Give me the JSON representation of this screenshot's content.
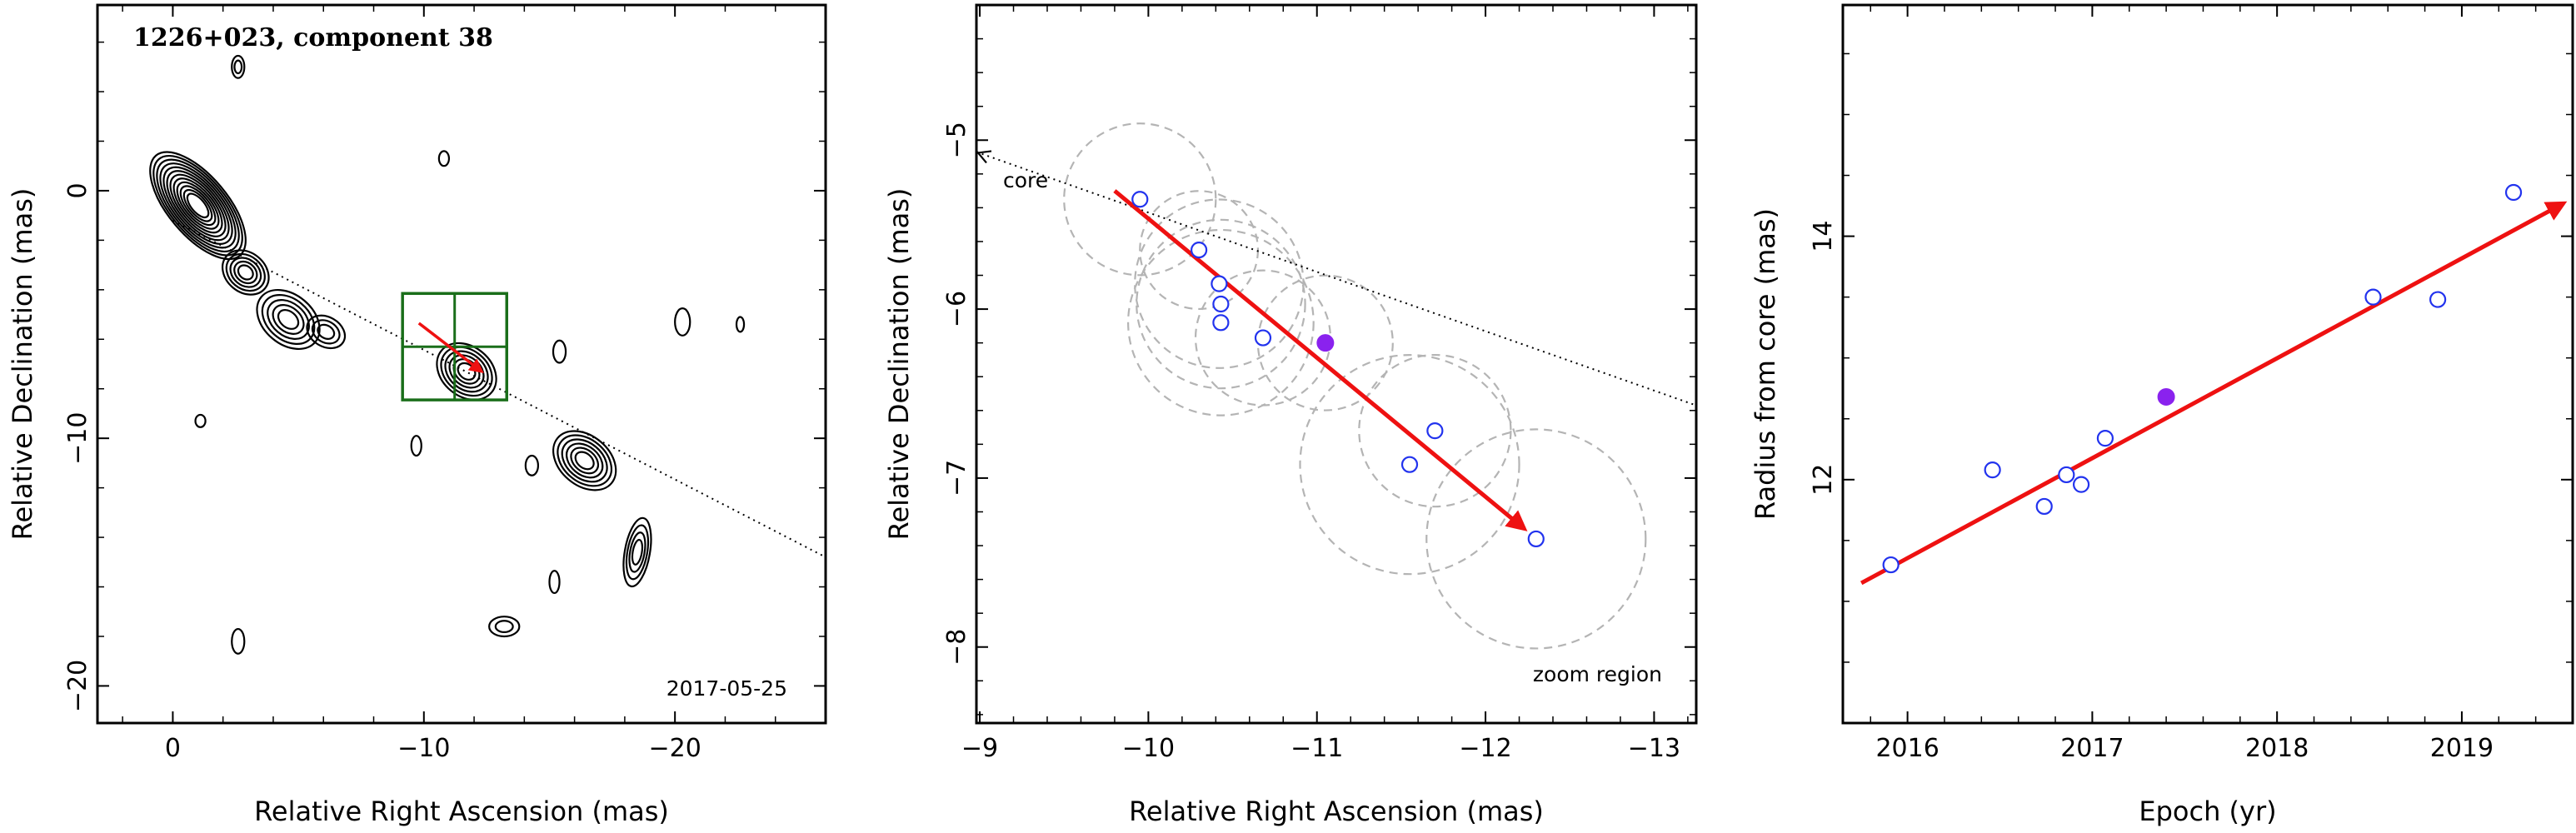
{
  "chart_data": [
    {
      "type": "contour",
      "title": "1226+023, component 38",
      "xlabel": "Relative Right Ascension (mas)",
      "ylabel": "Relative Declination (mas)",
      "xlim": [
        3,
        -26
      ],
      "ylim": [
        -21.5,
        7.5
      ],
      "xticks": [
        0,
        -10,
        -20
      ],
      "xtick_labels": [
        "0",
        "−10",
        "−20"
      ],
      "yticks": [
        0,
        -10,
        -20
      ],
      "ytick_labels": [
        "0",
        "−10",
        "−20"
      ],
      "date_label": "2017-05-25",
      "jet_axis_line": [
        [
          0,
          -1.2
        ],
        [
          -26,
          -14.8
        ]
      ],
      "zoom_box": {
        "x": [
          -9.15,
          -13.3
        ],
        "y": [
          -4.15,
          -8.45
        ]
      },
      "motion_arrow": {
        "from": [
          -9.8,
          -5.35
        ],
        "to": [
          -12.3,
          -7.3
        ]
      },
      "features": [
        {
          "x": -1.0,
          "y": -0.6,
          "rx": 2.6,
          "ry": 1.2,
          "rot": 50,
          "levels": 12
        },
        {
          "x": -2.9,
          "y": -3.3,
          "rx": 1.0,
          "ry": 0.8,
          "rot": 40,
          "levels": 5
        },
        {
          "x": -4.6,
          "y": -5.2,
          "rx": 1.4,
          "ry": 1.0,
          "rot": 40,
          "levels": 5
        },
        {
          "x": -6.1,
          "y": -5.7,
          "rx": 0.8,
          "ry": 0.6,
          "rot": 30,
          "levels": 3
        },
        {
          "x": -11.7,
          "y": -7.3,
          "rx": 1.3,
          "ry": 1.0,
          "rot": 40,
          "levels": 6
        },
        {
          "x": -16.4,
          "y": -10.9,
          "rx": 1.4,
          "ry": 1.0,
          "rot": 40,
          "levels": 6
        },
        {
          "x": -18.5,
          "y": -14.6,
          "rx": 0.5,
          "ry": 1.4,
          "rot": 10,
          "levels": 4
        },
        {
          "x": -13.2,
          "y": -17.6,
          "rx": 0.6,
          "ry": 0.4,
          "rot": 0,
          "levels": 2
        },
        {
          "x": -20.3,
          "y": -5.3,
          "rx": 0.3,
          "ry": 0.55,
          "rot": 0,
          "levels": 1
        },
        {
          "x": -22.6,
          "y": -5.4,
          "rx": 0.15,
          "ry": 0.3,
          "rot": 0,
          "levels": 1
        },
        {
          "x": -14.3,
          "y": -11.1,
          "rx": 0.25,
          "ry": 0.4,
          "rot": 0,
          "levels": 1
        },
        {
          "x": -15.4,
          "y": -6.5,
          "rx": 0.25,
          "ry": 0.45,
          "rot": 0,
          "levels": 1
        },
        {
          "x": -2.6,
          "y": -18.2,
          "rx": 0.25,
          "ry": 0.5,
          "rot": 0,
          "levels": 1
        },
        {
          "x": -1.1,
          "y": -9.3,
          "rx": 0.2,
          "ry": 0.25,
          "rot": 0,
          "levels": 1
        },
        {
          "x": -10.8,
          "y": 1.3,
          "rx": 0.2,
          "ry": 0.3,
          "rot": 0,
          "levels": 1
        },
        {
          "x": -2.6,
          "y": 5.0,
          "rx": 0.25,
          "ry": 0.45,
          "rot": 0,
          "levels": 2
        },
        {
          "x": -15.2,
          "y": -15.8,
          "rx": 0.2,
          "ry": 0.45,
          "rot": 0,
          "levels": 1
        },
        {
          "x": -9.7,
          "y": -10.3,
          "rx": 0.2,
          "ry": 0.4,
          "rot": 0,
          "levels": 1
        }
      ]
    },
    {
      "type": "scatter",
      "xlabel": "Relative Right Ascension (mas)",
      "ylabel": "Relative Declination (mas)",
      "xlim": [
        -8.98,
        -13.25
      ],
      "ylim": [
        -8.45,
        -4.2
      ],
      "xticks": [
        -9,
        -10,
        -11,
        -12,
        -13
      ],
      "xtick_labels": [
        "−9",
        "−10",
        "−11",
        "−12",
        "−13"
      ],
      "yticks": [
        -5,
        -6,
        -7,
        -8
      ],
      "ytick_labels": [
        "−5",
        "−6",
        "−7",
        "−8"
      ],
      "core_label": "core",
      "corner_label": "zoom region",
      "axis_line": [
        [
          -8.98,
          -5.07
        ],
        [
          -13.25,
          -6.57
        ]
      ],
      "motion_arrow": {
        "from": [
          -9.8,
          -5.3
        ],
        "to": [
          -12.23,
          -7.3
        ]
      },
      "points": [
        {
          "x": -9.95,
          "y": -5.35,
          "r": 0.45
        },
        {
          "x": -10.3,
          "y": -5.65,
          "r": 0.35
        },
        {
          "x": -10.42,
          "y": -5.85,
          "r": 0.5
        },
        {
          "x": -10.43,
          "y": -5.97,
          "r": 0.5
        },
        {
          "x": -10.43,
          "y": -6.08,
          "r": 0.55
        },
        {
          "x": -10.68,
          "y": -6.17,
          "r": 0.4
        },
        {
          "x": -11.7,
          "y": -6.72,
          "r": 0.45
        },
        {
          "x": -11.55,
          "y": -6.92,
          "r": 0.65
        },
        {
          "x": -12.3,
          "y": -7.36,
          "r": 0.65
        }
      ],
      "highlight_point": {
        "x": -11.05,
        "y": -6.2,
        "r": 0.4
      }
    },
    {
      "type": "scatter",
      "xlabel": "Epoch (yr)",
      "ylabel": "Radius from core (mas)",
      "xlim": [
        2015.65,
        2019.6
      ],
      "ylim": [
        10.0,
        15.9
      ],
      "xticks": [
        2016,
        2017,
        2018,
        2019
      ],
      "xtick_labels": [
        "2016",
        "2017",
        "2018",
        "2019"
      ],
      "yticks": [
        12,
        14
      ],
      "ytick_labels": [
        "12",
        "14"
      ],
      "fit_line": {
        "from": [
          2015.75,
          11.15
        ],
        "to": [
          2019.55,
          14.27
        ]
      },
      "points": [
        {
          "x": 2015.91,
          "y": 11.3
        },
        {
          "x": 2016.46,
          "y": 12.08
        },
        {
          "x": 2016.74,
          "y": 11.78
        },
        {
          "x": 2016.86,
          "y": 12.04
        },
        {
          "x": 2016.94,
          "y": 11.96
        },
        {
          "x": 2017.07,
          "y": 12.34
        },
        {
          "x": 2018.52,
          "y": 13.5
        },
        {
          "x": 2018.87,
          "y": 13.48
        },
        {
          "x": 2019.28,
          "y": 14.36
        }
      ],
      "highlight_point": {
        "x": 2017.4,
        "y": 12.68
      }
    }
  ]
}
